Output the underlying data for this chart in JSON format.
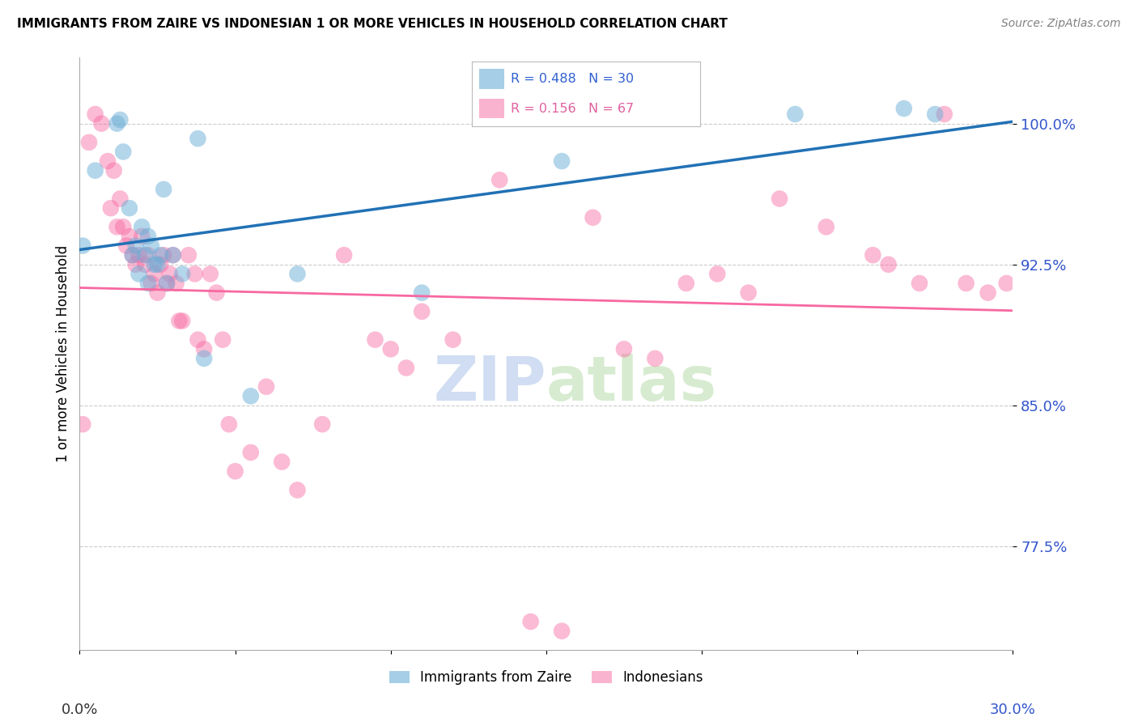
{
  "title": "IMMIGRANTS FROM ZAIRE VS INDONESIAN 1 OR MORE VEHICLES IN HOUSEHOLD CORRELATION CHART",
  "source": "Source: ZipAtlas.com",
  "ylabel": "1 or more Vehicles in Household",
  "yticks": [
    77.5,
    85.0,
    92.5,
    100.0
  ],
  "ytick_labels": [
    "77.5%",
    "85.0%",
    "92.5%",
    "100.0%"
  ],
  "xmin": 0.0,
  "xmax": 0.3,
  "ymin": 72.0,
  "ymax": 103.5,
  "blue_color": "#6baed6",
  "pink_color": "#f768a1",
  "blue_line_color": "#2171b5",
  "pink_line_color": "#f768a1",
  "legend_label1": "Immigrants from Zaire",
  "legend_label2": "Indonesians",
  "R_blue": 0.488,
  "R_pink": 0.156,
  "N_blue": 30,
  "N_pink": 67,
  "blue_x": [
    0.001,
    0.005,
    0.012,
    0.013,
    0.014,
    0.016,
    0.017,
    0.018,
    0.019,
    0.02,
    0.021,
    0.022,
    0.022,
    0.023,
    0.024,
    0.025,
    0.026,
    0.027,
    0.028,
    0.03,
    0.033,
    0.038,
    0.04,
    0.055,
    0.07,
    0.11,
    0.155,
    0.23,
    0.265,
    0.275
  ],
  "blue_y": [
    93.5,
    97.5,
    100.0,
    100.2,
    98.5,
    95.5,
    93.0,
    93.5,
    92.0,
    94.5,
    93.0,
    94.0,
    91.5,
    93.5,
    92.5,
    92.5,
    93.0,
    96.5,
    91.5,
    93.0,
    92.0,
    99.2,
    87.5,
    85.5,
    92.0,
    91.0,
    98.0,
    100.5,
    100.8,
    100.5
  ],
  "pink_x": [
    0.001,
    0.003,
    0.005,
    0.007,
    0.009,
    0.01,
    0.011,
    0.012,
    0.013,
    0.014,
    0.015,
    0.016,
    0.017,
    0.018,
    0.019,
    0.02,
    0.021,
    0.022,
    0.023,
    0.024,
    0.025,
    0.026,
    0.027,
    0.028,
    0.029,
    0.03,
    0.031,
    0.032,
    0.033,
    0.035,
    0.037,
    0.038,
    0.04,
    0.042,
    0.044,
    0.046,
    0.048,
    0.05,
    0.055,
    0.06,
    0.065,
    0.07,
    0.078,
    0.085,
    0.095,
    0.1,
    0.105,
    0.11,
    0.12,
    0.135,
    0.145,
    0.155,
    0.165,
    0.175,
    0.185,
    0.195,
    0.205,
    0.215,
    0.225,
    0.24,
    0.255,
    0.26,
    0.27,
    0.278,
    0.285,
    0.292,
    0.298
  ],
  "pink_y": [
    84.0,
    99.0,
    100.5,
    100.0,
    98.0,
    95.5,
    97.5,
    94.5,
    96.0,
    94.5,
    93.5,
    94.0,
    93.0,
    92.5,
    93.0,
    94.0,
    92.5,
    93.0,
    91.5,
    92.0,
    91.0,
    92.5,
    93.0,
    91.5,
    92.0,
    93.0,
    91.5,
    89.5,
    89.5,
    93.0,
    92.0,
    88.5,
    88.0,
    92.0,
    91.0,
    88.5,
    84.0,
    81.5,
    82.5,
    86.0,
    82.0,
    80.5,
    84.0,
    93.0,
    88.5,
    88.0,
    87.0,
    90.0,
    88.5,
    97.0,
    73.5,
    73.0,
    95.0,
    88.0,
    87.5,
    91.5,
    92.0,
    91.0,
    96.0,
    94.5,
    93.0,
    92.5,
    91.5,
    100.5,
    91.5,
    91.0,
    91.5
  ]
}
